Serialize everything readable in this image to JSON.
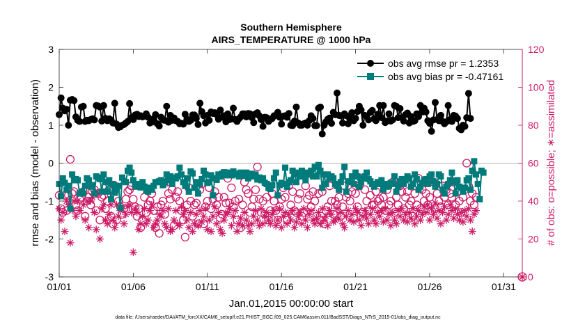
{
  "chart_data": {
    "type": "line",
    "title": "Southern Hemisphere",
    "subtitle": "AIRS_TEMPERATURE @ 1000 hPa",
    "xlabel": "Jan.01,2015 00:00:00 start",
    "ylabel": "rmse and bias (model - observation)",
    "y2label": "# of obs: o=possible; ∗=assimilated",
    "footnote": "data file: /Users/raeder/DAI/ATM_forcXX/CAM6_setup/f.e21.FHIST_BGC.f09_025.CAM6assim.011/BadSST/Diags_NTrS_2015-01/obs_diag_output.nc",
    "xlim": [
      0,
      31.25
    ],
    "ylim": [
      -3,
      3
    ],
    "y2lim": [
      0,
      120
    ],
    "xticks": [
      0,
      5,
      10,
      15,
      20,
      25,
      30
    ],
    "xtick_labels": [
      "01/01",
      "01/06",
      "01/11",
      "01/16",
      "01/21",
      "01/26",
      "01/31"
    ],
    "yticks": [
      -3,
      -2,
      -1,
      0,
      1,
      2,
      3
    ],
    "ytick_labels": [
      "-3",
      "-2",
      "-1",
      "0",
      "1",
      "2",
      "3"
    ],
    "y2ticks": [
      0,
      20,
      40,
      60,
      80,
      100,
      120
    ],
    "y2tick_labels": [
      "0",
      "20",
      "40",
      "60",
      "80",
      "100",
      "120"
    ],
    "grid": false,
    "legend_position": "top-right",
    "colors": {
      "rmse": "#000000",
      "bias": "#007b7b",
      "obs": "#cc1a66",
      "zero_line": "#b4b4b4"
    },
    "x_step_days": 0.125,
    "series": [
      {
        "name": "obs avg rmse pr = 1.2353",
        "axis": "left",
        "marker": "circle-filled",
        "values": [
          1.28,
          1.72,
          1.45,
          1.38,
          1.42,
          1.0,
          1.66,
          1.68,
          1.65,
          1.22,
          1.13,
          1.1,
          1.48,
          1.5,
          1.1,
          1.13,
          1.12,
          1.15,
          1.17,
          1.14,
          1.52,
          1.51,
          1.48,
          1.11,
          1.52,
          1.18,
          1.12,
          1.17,
          1.14,
          1.06,
          1.58,
          1.03,
          0.94,
          0.96,
          1.0,
          1.02,
          1.06,
          1.1,
          1.57,
          1.2,
          1.15,
          1.27,
          1.29,
          1.23,
          1.25,
          1.22,
          1.24,
          1.3,
          1.21,
          1.06,
          1.08,
          1.17,
          1.28,
          1.04,
          0.98,
          1.21,
          1.14,
          1.13,
          1.5,
          1.08,
          1.26,
          1.13,
          1.19,
          1.12,
          1.1,
          1.04,
          1.05,
          1.03,
          1.29,
          1.16,
          1.1,
          1.13,
          1.27,
          1.27,
          1.18,
          1.02,
          1.58,
          1.36,
          1.25,
          1.06,
          1.26,
          1.13,
          1.35,
          1.31,
          1.33,
          1.28,
          1.16,
          1.4,
          1.21,
          1.25,
          1.09,
          1.3,
          1.15,
          1.17,
          1.45,
          1.15,
          1.1,
          1.17,
          1.22,
          1.3,
          1.3,
          1.22,
          1.31,
          1.3,
          1.2,
          1.07,
          1.3,
          1.33,
          1.25,
          1.15,
          0.97,
          1.21,
          1.2,
          1.1,
          1.15,
          1.18,
          1.25,
          1.26,
          1.34,
          1.21,
          1.03,
          1.24,
          1.25,
          1.21,
          1.31,
          1.0,
          0.99,
          1.11,
          1.48,
          1.06,
          1.0,
          1.0,
          1.04,
          1.06,
          1.0,
          1.12,
          1.25,
          1.18,
          0.99,
          0.99,
          1.45,
          1.48,
          0.77,
          1.0,
          1.09,
          1.16,
          1.19,
          1.05,
          1.34,
          1.28,
          1.85,
          1.26,
          1.25,
          1.06,
          1.3,
          1.25,
          1.04,
          1.17,
          1.33,
          1.12,
          1.18,
          1.36,
          1.5,
          1.4,
          1.0,
          1.26,
          1.24,
          1.14,
          1.34,
          1.39,
          1.17,
          1.12,
          1.29,
          1.52,
          1.2,
          1.52,
          1.07,
          1.11,
          1.3,
          1.11,
          1.14,
          1.52,
          1.5,
          1.2,
          1.44,
          1.2,
          1.11,
          1.28,
          1.32,
          1.06,
          1.23,
          1.1,
          1.12,
          1.3,
          1.23,
          1.52,
          1.35,
          1.45,
          1.35,
          1.12,
          1.05,
          0.84,
          1.14,
          1.6,
          1.15,
          1.12,
          1.26,
          1.1,
          1.04,
          1.09,
          1.52,
          1.15,
          1.1,
          1.26,
          1.24,
          1.18,
          0.92,
          0.88,
          1.0,
          0.97,
          1.2,
          1.84,
          1.18
        ],
        "note": "rmse values per 3-hour assimilation cycle"
      },
      {
        "name": "obs avg bias pr = -0.47161",
        "axis": "left",
        "marker": "square-filled",
        "values": [
          -0.55,
          -0.87,
          -0.4,
          -0.52,
          -0.7,
          -0.6,
          -1.2,
          -0.3,
          -0.45,
          -0.42,
          -0.45,
          -0.8,
          -0.75,
          -0.8,
          -0.6,
          -0.4,
          -0.45,
          -0.62,
          -0.58,
          -0.8,
          -0.35,
          -0.38,
          -0.42,
          -0.75,
          -0.3,
          -0.5,
          -0.75,
          -0.45,
          -0.95,
          -0.55,
          -0.78,
          -0.7,
          -0.6,
          -1.18,
          -0.38,
          -0.48,
          -0.5,
          -0.2,
          -0.12,
          -0.25,
          -0.45,
          -0.6,
          -0.62,
          -0.55,
          -0.64,
          -0.5,
          -0.62,
          -0.72,
          -0.75,
          -0.65,
          -0.7,
          -0.6,
          -0.5,
          -0.5,
          -0.48,
          -0.45,
          -0.58,
          -0.5,
          -0.3,
          -0.45,
          -0.35,
          -0.55,
          -0.38,
          -0.4,
          -0.35,
          -0.12,
          -0.3,
          -0.5,
          -0.6,
          -0.4,
          -0.75,
          -0.22,
          -0.27,
          -0.65,
          -0.5,
          -0.8,
          -0.55,
          -0.42,
          -0.2,
          -0.3,
          -0.52,
          -0.5,
          -0.32,
          -0.85,
          -0.4,
          -0.44,
          -0.3,
          -0.35,
          -0.28,
          -0.24,
          -0.32,
          -0.25,
          -0.3,
          -0.32,
          -0.22,
          -0.28,
          -0.3,
          -0.35,
          -0.25,
          -0.3,
          -0.33,
          -0.25,
          -0.4,
          -0.32,
          -0.28,
          -0.35,
          -0.3,
          -0.43,
          -0.38,
          -0.45,
          -0.4,
          -0.52,
          -0.55,
          -0.65,
          -0.68,
          -0.58,
          -0.4,
          -0.25,
          -0.85,
          -0.58,
          -0.52,
          -0.55,
          -0.12,
          -0.62,
          -0.5,
          -0.45,
          -0.2,
          -0.3,
          -0.5,
          -0.25,
          -0.35,
          -0.2,
          -0.35,
          -0.45,
          -0.25,
          -0.3,
          -0.2,
          -0.35,
          -0.1,
          -0.35,
          -0.05,
          -0.2,
          -0.65,
          -0.3,
          -0.55,
          -0.3,
          -0.4,
          -0.35,
          -0.4,
          -0.55,
          -0.6,
          -0.7,
          -0.5,
          -0.35,
          -0.1,
          -0.75,
          -0.48,
          -0.5,
          -0.35,
          -0.55,
          -0.25,
          -0.35,
          -0.62,
          -0.5,
          -0.4,
          -0.35,
          -0.25,
          -0.42,
          -0.48,
          -0.55,
          -0.62,
          -0.55,
          -0.5,
          -0.55,
          -0.45,
          -0.7,
          -0.55,
          -0.62,
          -0.6,
          -0.52,
          -0.55,
          -0.35,
          -0.75,
          -0.6,
          -0.48,
          -0.42,
          -0.55,
          -0.45,
          -0.35,
          -0.4,
          -0.62,
          -0.55,
          -0.3,
          -0.42,
          -0.7,
          -0.62,
          -0.52,
          -0.45,
          -0.42,
          -0.55,
          -0.35,
          -0.3,
          -0.48,
          -0.62,
          -0.55,
          -0.3,
          -0.35,
          -0.7,
          -0.8,
          -0.62,
          -0.55,
          -0.45,
          -0.25,
          -0.5,
          -0.8,
          -0.45,
          -0.62,
          -0.65,
          -0.75,
          -0.65,
          -0.45,
          -0.4,
          -0.7,
          -0.2,
          0.05,
          -0.3,
          -0.55,
          -0.95,
          -0.2,
          -0.25
        ],
        "note": "bias values per 3-hour assimilation cycle"
      },
      {
        "name": "possible",
        "axis": "right",
        "marker": "circle-open",
        "values": [
          43,
          36,
          34,
          43,
          35,
          43,
          62,
          44,
          45,
          38,
          35,
          41,
          42,
          45,
          32,
          40,
          42,
          38,
          45,
          46,
          35,
          44,
          30,
          42,
          43,
          36,
          40,
          46,
          32,
          28,
          48,
          30,
          40,
          37,
          33,
          36,
          41,
          45,
          46,
          48,
          41,
          37,
          32,
          36,
          26,
          30,
          42,
          34,
          38,
          40,
          44,
          35,
          26,
          37,
          23,
          38,
          40,
          33,
          50,
          44,
          41,
          46,
          27,
          42,
          45,
          40,
          35,
          30,
          21,
          38,
          47,
          40,
          32,
          38,
          39,
          28,
          46,
          49,
          28,
          37,
          40,
          47,
          36,
          41,
          45,
          38,
          42,
          31,
          33,
          42,
          39,
          52,
          39,
          47,
          37,
          40,
          30,
          41,
          26,
          38,
          50,
          46,
          44,
          34,
          37,
          41,
          46,
          58,
          41,
          34,
          40,
          33,
          42,
          30,
          35,
          44,
          40,
          35,
          30,
          37,
          41,
          47,
          42,
          30,
          48,
          38,
          45,
          35,
          34,
          41,
          44,
          32,
          34,
          48,
          41,
          43,
          37,
          45,
          40,
          32,
          44,
          30,
          45,
          28,
          35,
          37,
          48,
          40,
          33,
          40,
          38,
          42,
          32,
          37,
          48,
          42,
          44,
          40,
          45,
          31,
          44,
          37,
          48,
          52,
          34,
          46,
          40,
          35,
          43,
          38,
          38,
          45,
          40,
          41,
          38,
          42,
          35,
          46,
          38,
          40,
          50,
          34,
          42,
          38,
          48,
          45,
          36,
          42,
          45,
          38,
          40,
          32,
          44,
          38,
          52,
          36,
          46,
          40,
          44,
          38,
          42,
          35,
          50,
          36,
          44,
          40,
          37,
          48,
          42,
          46,
          38,
          44,
          42,
          50,
          38,
          45,
          40,
          34,
          42,
          46,
          60,
          48,
          40,
          44,
          38,
          42
        ],
        "note": "count of possible observations (right axis)"
      },
      {
        "name": "assimilated",
        "axis": "right",
        "marker": "asterisk",
        "values": [
          36,
          30,
          34,
          24,
          40,
          38,
          18,
          35,
          40,
          32,
          40,
          35,
          44,
          38,
          30,
          40,
          26,
          40,
          42,
          34,
          25,
          44,
          20,
          36,
          38,
          30,
          28,
          33,
          38,
          30,
          26,
          38,
          32,
          35,
          36,
          28,
          33,
          37,
          38,
          34,
          13,
          36,
          34,
          25,
          28,
          32,
          36,
          28,
          30,
          35,
          38,
          26,
          28,
          30,
          33,
          32,
          35,
          28,
          26,
          36,
          24,
          25,
          30,
          35,
          28,
          27,
          37,
          33,
          35,
          30,
          26,
          34,
          24,
          28,
          33,
          27,
          35,
          29,
          32,
          36,
          25,
          30,
          24,
          32,
          37,
          28,
          34,
          25,
          23,
          30,
          33,
          34,
          36,
          27,
          32,
          35,
          24,
          28,
          31,
          27,
          34,
          30,
          27,
          24,
          28,
          32,
          35,
          30,
          27,
          36,
          28,
          32,
          34,
          30,
          28,
          33,
          35,
          27,
          30,
          36,
          26,
          32,
          34,
          28,
          33,
          30,
          35,
          26,
          29,
          32,
          34,
          28,
          36,
          30,
          26,
          33,
          35,
          30,
          28,
          31,
          34,
          28,
          36,
          30,
          32,
          27,
          35,
          33,
          29,
          30,
          36,
          31,
          34,
          28,
          26,
          32,
          35,
          30,
          33,
          29,
          36,
          34,
          30,
          27,
          32,
          35,
          31,
          28,
          33,
          36,
          30,
          28,
          34,
          32,
          35,
          29,
          36,
          30,
          33,
          27,
          34,
          30,
          28,
          35,
          32,
          36,
          30,
          33,
          29,
          34,
          31,
          36,
          28,
          32,
          35,
          30,
          33,
          37,
          34,
          38,
          30,
          36,
          33,
          39,
          31,
          35,
          28,
          34,
          37,
          30,
          33,
          38,
          35,
          31,
          36,
          33,
          30,
          34,
          29,
          35,
          32,
          36,
          30,
          24,
          33,
          35
        ],
        "note": "count of assimilated observations (right axis)"
      }
    ],
    "extra_marks": {
      "asterisk_at_axis_bottom": {
        "x": 31.25,
        "y2": 0
      }
    }
  }
}
